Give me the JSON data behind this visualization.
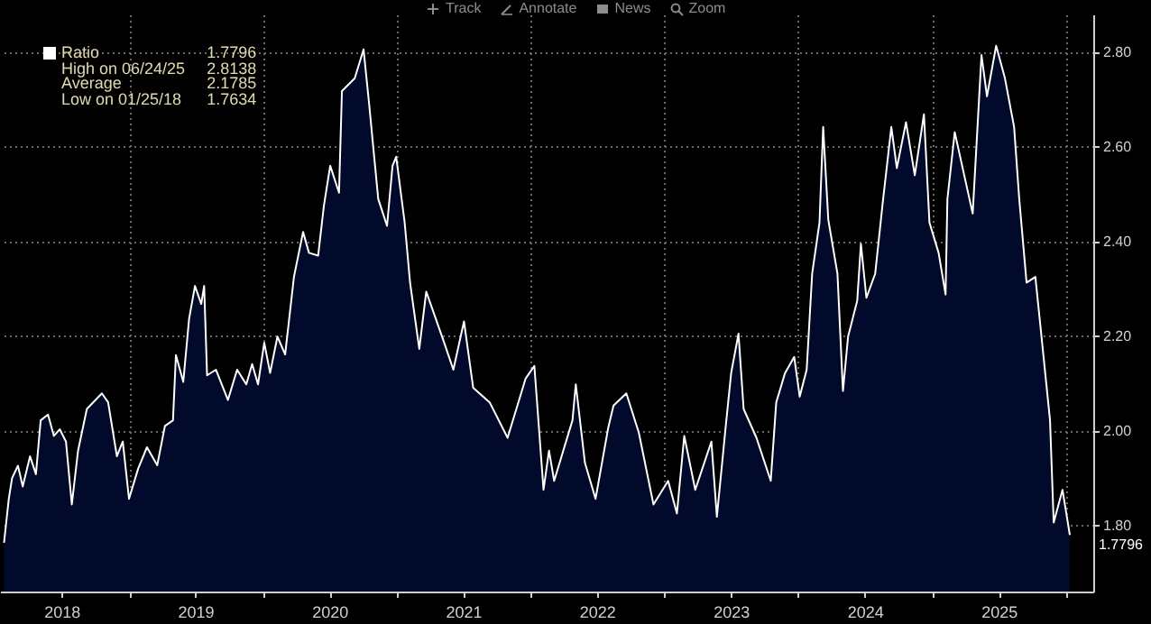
{
  "chart_data": {
    "type": "area",
    "xlim": [
      "2018-01-14",
      "2026-03-16"
    ],
    "ylim": [
      1.66,
      2.88
    ],
    "yticks": [
      {
        "value": 1.8,
        "label": "1.80"
      },
      {
        "value": 2.0,
        "label": "2.00"
      },
      {
        "value": 2.2,
        "label": "2.20"
      },
      {
        "value": 2.4,
        "label": "2.40"
      },
      {
        "value": 2.6,
        "label": "2.60"
      },
      {
        "value": 2.8,
        "label": "2.80"
      }
    ],
    "xticks": [
      {
        "value": "2018-07-01",
        "label": "2018"
      },
      {
        "value": "2019-01-01",
        "label": null
      },
      {
        "value": "2019-07-01",
        "label": "2019"
      },
      {
        "value": "2020-01-01",
        "label": null
      },
      {
        "value": "2020-07-01",
        "label": "2020"
      },
      {
        "value": "2021-01-01",
        "label": null
      },
      {
        "value": "2021-07-01",
        "label": "2021"
      },
      {
        "value": "2022-01-01",
        "label": null
      },
      {
        "value": "2022-07-01",
        "label": "2022"
      },
      {
        "value": "2023-01-01",
        "label": null
      },
      {
        "value": "2023-07-01",
        "label": "2023"
      },
      {
        "value": "2024-01-01",
        "label": null
      },
      {
        "value": "2024-07-01",
        "label": "2024"
      },
      {
        "value": "2025-01-01",
        "label": null
      },
      {
        "value": "2025-07-01",
        "label": "2025"
      },
      {
        "value": "2026-01-01",
        "label": null
      }
    ],
    "grid": true,
    "legend": "top left",
    "annotations": [
      "High on 06/24/25 2.8138",
      "Average 2.1785",
      "Low on 01/25/18 1.7634",
      {
        "text": "1.7796",
        "x": "2026-01-11",
        "y": 1.7796
      },
      "Track",
      "Annotate",
      "News",
      "Zoom"
    ],
    "x": [
      "2018-01-25",
      "2018-02-07",
      "2018-02-16",
      "2018-03-04",
      "2018-03-17",
      "2018-04-06",
      "2018-04-22",
      "2018-05-05",
      "2018-05-25",
      "2018-06-10",
      "2018-06-26",
      "2018-07-13",
      "2018-07-29",
      "2018-08-15",
      "2018-09-08",
      "2018-10-19",
      "2018-11-05",
      "2018-11-29",
      "2018-12-15",
      "2019-01-01",
      "2019-01-26",
      "2019-02-19",
      "2019-03-19",
      "2019-04-09",
      "2019-05-01",
      "2019-05-09",
      "2019-05-29",
      "2019-06-14",
      "2019-06-30",
      "2019-07-17",
      "2019-07-25",
      "2019-08-02",
      "2019-08-26",
      "2019-09-28",
      "2019-10-23",
      "2019-11-17",
      "2019-12-03",
      "2019-12-19",
      "2020-01-05",
      "2020-01-21",
      "2020-02-10",
      "2020-03-02",
      "2020-03-26",
      "2020-04-20",
      "2020-05-06",
      "2020-05-31",
      "2020-06-16",
      "2020-07-03",
      "2020-07-27",
      "2020-08-04",
      "2020-09-08",
      "2020-10-02",
      "2020-10-17",
      "2020-11-11",
      "2020-12-05",
      "2020-12-20",
      "2020-12-30",
      "2021-01-22",
      "2021-02-06",
      "2021-03-03",
      "2021-03-22",
      "2021-05-10",
      "2021-06-04",
      "2021-07-03",
      "2021-07-28",
      "2021-09-11",
      "2021-10-30",
      "2021-12-18",
      "2022-01-11",
      "2022-02-05",
      "2022-02-20",
      "2022-03-06",
      "2022-04-25",
      "2022-05-04",
      "2022-05-29",
      "2022-06-27",
      "2022-08-01",
      "2022-08-15",
      "2022-09-19",
      "2022-10-23",
      "2022-12-02",
      "2023-01-11",
      "2023-02-04",
      "2023-02-24",
      "2023-03-26",
      "2023-05-09",
      "2023-05-24",
      "2023-06-17",
      "2023-07-02",
      "2023-07-22",
      "2023-08-05",
      "2023-09-09",
      "2023-10-18",
      "2023-11-02",
      "2023-11-26",
      "2023-12-21",
      "2024-01-05",
      "2024-01-24",
      "2024-02-08",
      "2024-02-28",
      "2024-03-09",
      "2024-03-23",
      "2024-04-17",
      "2024-05-02",
      "2024-05-16",
      "2024-06-10",
      "2024-06-20",
      "2024-07-05",
      "2024-07-29",
      "2024-08-18",
      "2024-09-11",
      "2024-09-26",
      "2024-10-21",
      "2024-11-14",
      "2024-12-09",
      "2024-12-24",
      "2025-01-18",
      "2025-02-06",
      "2025-02-11",
      "2025-03-03",
      "2025-04-21",
      "2025-05-15",
      "2025-05-30",
      "2025-06-24",
      "2025-07-18",
      "2025-08-12",
      "2025-08-26",
      "2025-09-15",
      "2025-10-09",
      "2025-10-24",
      "2025-11-18",
      "2025-11-28",
      "2025-12-22",
      "2026-01-11"
    ],
    "series": [
      {
        "name": "Ratio",
        "color": "#ffffff",
        "values": [
          1.763,
          1.856,
          1.9,
          1.926,
          1.882,
          1.946,
          1.908,
          2.022,
          2.034,
          1.989,
          2.003,
          1.977,
          1.844,
          1.958,
          2.046,
          2.079,
          2.06,
          1.946,
          1.977,
          1.856,
          1.92,
          1.965,
          1.927,
          2.01,
          2.022,
          2.16,
          2.103,
          2.237,
          2.306,
          2.268,
          2.306,
          2.117,
          2.129,
          2.065,
          2.129,
          2.098,
          2.141,
          2.098,
          2.186,
          2.122,
          2.199,
          2.161,
          2.325,
          2.42,
          2.376,
          2.37,
          2.477,
          2.56,
          2.503,
          2.718,
          2.745,
          2.806,
          2.692,
          2.49,
          2.433,
          2.56,
          2.579,
          2.441,
          2.312,
          2.173,
          2.294,
          2.186,
          2.129,
          2.231,
          2.091,
          2.06,
          1.985,
          2.11,
          2.137,
          1.875,
          1.958,
          1.894,
          2.022,
          2.098,
          1.932,
          1.856,
          2.008,
          2.053,
          2.079,
          1.996,
          1.844,
          1.894,
          1.825,
          1.989,
          1.875,
          1.977,
          1.818,
          2.008,
          2.122,
          2.205,
          2.046,
          1.985,
          1.894,
          2.06,
          2.122,
          2.156,
          2.072,
          2.129,
          2.332,
          2.44,
          2.642,
          2.446,
          2.332,
          2.084,
          2.199,
          2.275,
          2.395,
          2.281,
          2.332,
          2.478,
          2.642,
          2.555,
          2.652,
          2.54,
          2.669,
          2.44,
          2.376,
          2.288,
          2.49,
          2.631,
          2.459,
          2.794,
          2.707,
          2.8138,
          2.745,
          2.642,
          2.49,
          2.313,
          2.325,
          2.212,
          2.022,
          1.806,
          1.875,
          1.7796
        ]
      }
    ]
  }
}
